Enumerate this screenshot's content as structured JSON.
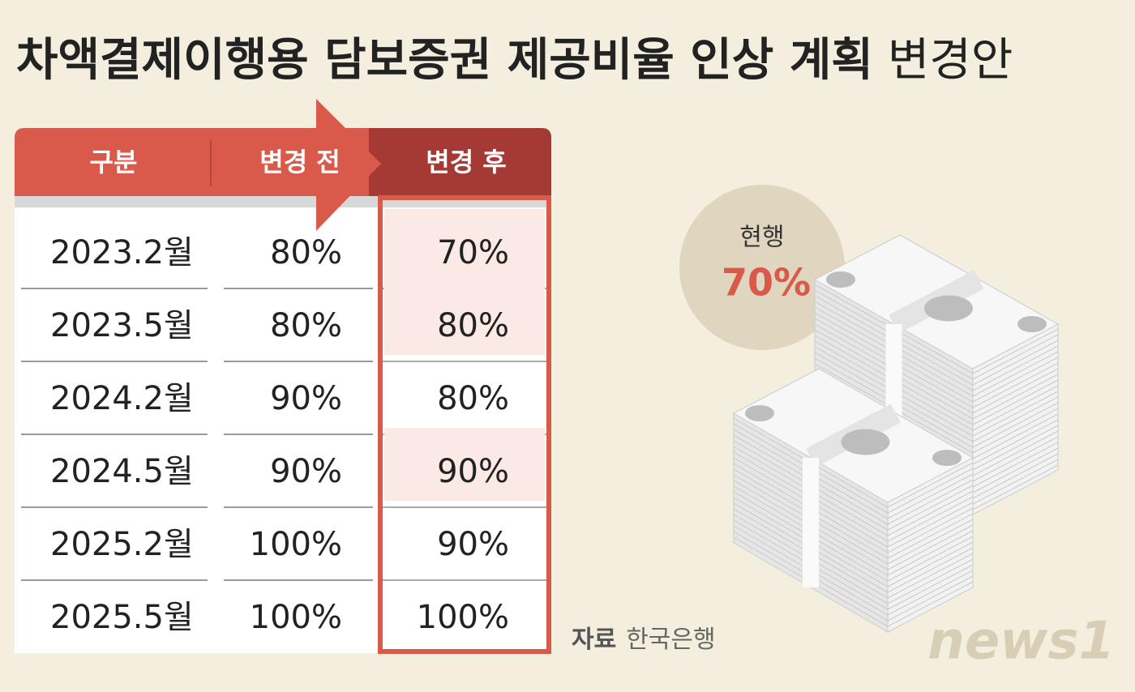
{
  "title": "차액결제이행용 담보증권 제공비율 인상 계획",
  "title_suffix": "변경안",
  "table": {
    "headers": [
      "구분",
      "변경 전",
      "변경 후"
    ],
    "rows": [
      [
        "2023.2월",
        "80%",
        "70%"
      ],
      [
        "2023.5월",
        "80%",
        "80%"
      ],
      [
        "2024.2월",
        "90%",
        "80%"
      ],
      [
        "2024.5월",
        "90%",
        "90%"
      ],
      [
        "2025.2월",
        "100%",
        "90%"
      ],
      [
        "2025.5월",
        "100%",
        "100%"
      ]
    ]
  },
  "badge": {
    "label": "현행",
    "value": "70%"
  },
  "source": {
    "label": "자료",
    "name": "한국은행"
  },
  "logo": "news1"
}
